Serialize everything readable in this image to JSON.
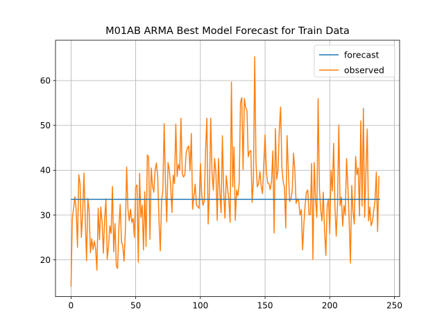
{
  "chart_data": {
    "type": "line",
    "title": "M01AB ARMA Best Model Forecast for Train Data",
    "xlabel": "",
    "ylabel": "",
    "xlim": [
      -12,
      254
    ],
    "ylim": [
      11.8,
      69.0
    ],
    "xticks": [
      0,
      50,
      100,
      150,
      200,
      250
    ],
    "yticks": [
      20,
      30,
      40,
      50,
      60
    ],
    "grid": true,
    "legend_position": "upper right",
    "series": [
      {
        "name": "forecast",
        "color": "#1f77b4",
        "x": [
          0,
          239
        ],
        "values": [
          33.5,
          33.5
        ]
      },
      {
        "name": "observed",
        "color": "#ff7f0e",
        "x_start": 0,
        "values": [
          14.0,
          29.3,
          31.5,
          34.1,
          31.2,
          22.8,
          39.0,
          37.0,
          25.0,
          30.5,
          39.4,
          29.0,
          19.8,
          33.7,
          31.0,
          21.6,
          24.7,
          22.3,
          24.2,
          22.6,
          17.7,
          31.5,
          24.5,
          31.8,
          28.5,
          21.5,
          29.0,
          33.6,
          20.2,
          23.1,
          27.6,
          25.9,
          36.4,
          21.8,
          28.1,
          18.7,
          18.1,
          27.3,
          32.4,
          24.0,
          23.2,
          19.7,
          26.4,
          40.7,
          31.4,
          28.7,
          31.3,
          28.4,
          29.2,
          25.0,
          36.3,
          36.7,
          19.5,
          39.3,
          29.5,
          32.2,
          22.2,
          35.2,
          23.0,
          43.4,
          42.9,
          24.6,
          40.5,
          36.5,
          35.1,
          40.0,
          41.6,
          38.6,
          28.9,
          22.0,
          33.2,
          35.4,
          50.4,
          36.9,
          28.5,
          41.7,
          40.0,
          36.7,
          30.6,
          38.9,
          37.0,
          50.3,
          38.6,
          41.3,
          40.0,
          51.6,
          39.2,
          38.5,
          39.0,
          43.8,
          45.0,
          45.4,
          39.9,
          48.2,
          31.3,
          34.3,
          36.9,
          32.2,
          31.9,
          31.5,
          41.5,
          34.7,
          32.2,
          33.0,
          44.2,
          51.6,
          28.0,
          35.4,
          51.6,
          39.4,
          35.5,
          42.6,
          39.5,
          28.8,
          42.6,
          35.0,
          30.5,
          47.7,
          35.2,
          29.3,
          38.8,
          35.9,
          33.3,
          28.4,
          59.7,
          36.3,
          45.2,
          28.8,
          35.6,
          34.3,
          37.1,
          55.1,
          56.2,
          40.1,
          56.0,
          54.0,
          53.3,
          43.0,
          44.2,
          44.4,
          32.8,
          37.8,
          65.3,
          41.6,
          36.3,
          37.0,
          39.7,
          36.4,
          34.8,
          41.3,
          47.9,
          39.7,
          37.2,
          37.0,
          35.7,
          37.5,
          44.3,
          26.0,
          49.3,
          38.0,
          40.0,
          49.0,
          54.1,
          40.7,
          37.5,
          36.1,
          27.1,
          47.7,
          40.0,
          33.0,
          33.7,
          35.5,
          43.8,
          40.0,
          32.6,
          33.6,
          33.2,
          30.0,
          31.2,
          22.2,
          28.0,
          32.4,
          35.1,
          35.6,
          30.1,
          30.1,
          41.5,
          20.1,
          41.7,
          33.5,
          29.5,
          56.0,
          36.0,
          31.2,
          28.7,
          35.1,
          26.5,
          21.0,
          32.0,
          33.6,
          25.8,
          40.0,
          35.4,
          46.0,
          31.9,
          25.3,
          32.2,
          50.1,
          32.1,
          34.0,
          27.5,
          32.1,
          30.0,
          42.6,
          36.5,
          28.7,
          19.3,
          36.6,
          30.7,
          28.0,
          43.1,
          39.0,
          40.5,
          29.8,
          51.0,
          32.0,
          53.8,
          29.5,
          40.0,
          49.2,
          28.7,
          31.8,
          27.6,
          28.6,
          31.0,
          33.2,
          39.6,
          26.3,
          38.7
        ]
      }
    ]
  }
}
